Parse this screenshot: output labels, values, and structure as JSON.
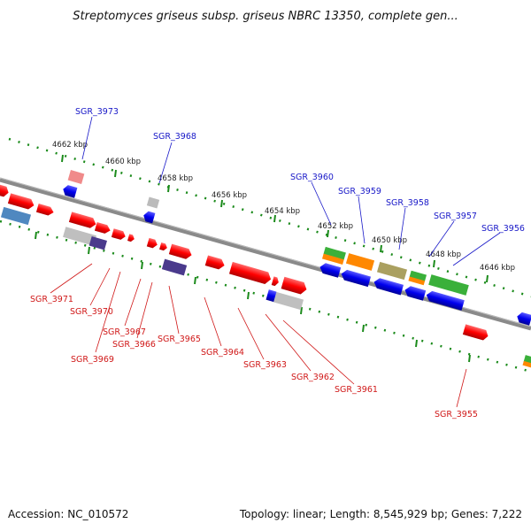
{
  "title": "Streptomyces griseus subsp. griseus NBRC 13350, complete gen...",
  "accession": "Accession: NC_010572",
  "summary": "Topology: linear; Length: 8,545,929 bp; Genes: 7,222",
  "colors": {
    "forward": "#ff0000",
    "reverse": "#0000ee",
    "backbone": "#888888",
    "ticks": "#1a8a1a"
  },
  "scale": {
    "labels": [
      "4662 kbp",
      "4660 kbp",
      "4658 kbp",
      "4656 kbp",
      "4654 kbp",
      "4652 kbp",
      "4650 kbp",
      "4648 kbp",
      "4646 kbp"
    ]
  },
  "genes_top": [
    "SGR_3973",
    "SGR_3968",
    "SGR_3960",
    "SGR_3959",
    "SGR_3958",
    "SGR_3957",
    "SGR_3956"
  ],
  "genes_bottom": [
    "SGR_3971",
    "SGR_3970",
    "SGR_3969",
    "SGR_3967",
    "SGR_3966",
    "SGR_3965",
    "SGR_3964",
    "SGR_3963",
    "SGR_3962",
    "SGR_3961",
    "SGR_3955"
  ]
}
